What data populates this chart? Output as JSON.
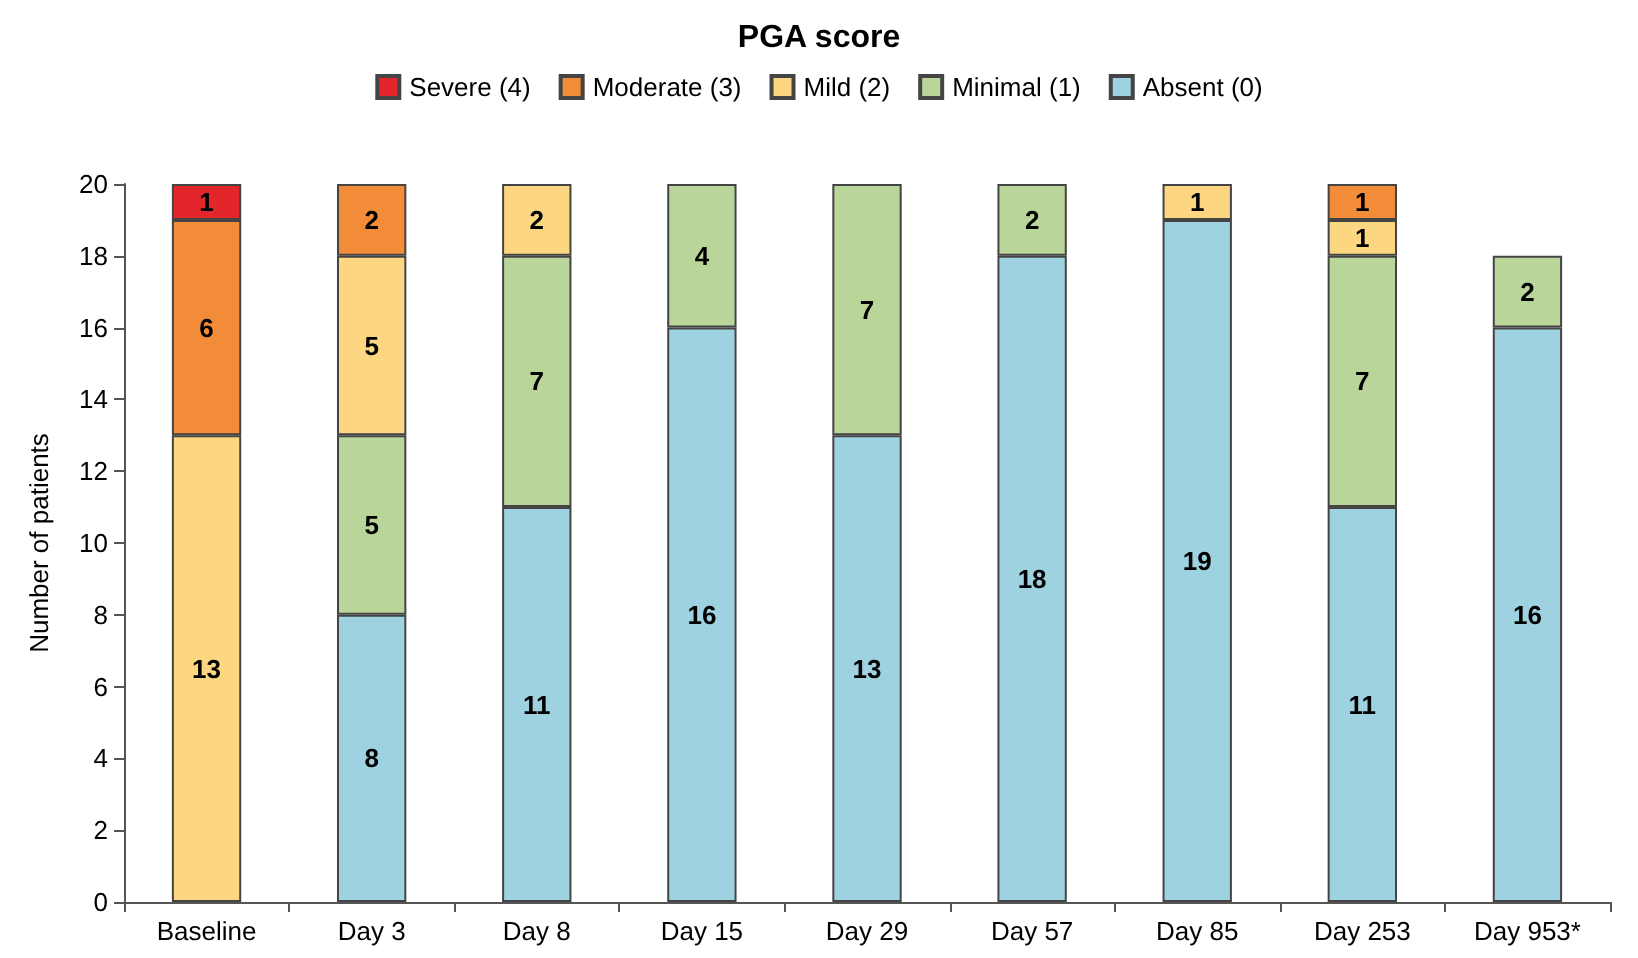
{
  "chart_data": {
    "type": "bar",
    "title": "PGA score",
    "ylabel": "Number of patients",
    "categories": [
      "Baseline",
      "Day 3",
      "Day 8",
      "Day 15",
      "Day 29",
      "Day 57",
      "Day 85",
      "Day 253",
      "Day 953*"
    ],
    "series": [
      {
        "name": "Absent (0)",
        "color": "#9fd2e0",
        "values": [
          null,
          8,
          11,
          16,
          13,
          18,
          19,
          11,
          16
        ]
      },
      {
        "name": "Minimal (1)",
        "color": "#b9d59a",
        "values": [
          null,
          5,
          7,
          4,
          7,
          2,
          null,
          7,
          2
        ]
      },
      {
        "name": "Mild (2)",
        "color": "#fcd681",
        "values": [
          13,
          5,
          2,
          null,
          null,
          null,
          1,
          1,
          null
        ]
      },
      {
        "name": "Moderate (3)",
        "color": "#f28c38",
        "values": [
          6,
          2,
          null,
          null,
          null,
          null,
          null,
          1,
          null
        ]
      },
      {
        "name": "Severe (4)",
        "color": "#e3262b",
        "values": [
          1,
          null,
          null,
          null,
          null,
          null,
          null,
          null,
          null
        ]
      }
    ],
    "stacked": true,
    "data_labels": true,
    "ylim": [
      0,
      20
    ],
    "yticks": [
      0,
      2,
      4,
      6,
      8,
      10,
      12,
      14,
      16,
      18,
      20
    ],
    "grid": false,
    "legend": "top"
  }
}
